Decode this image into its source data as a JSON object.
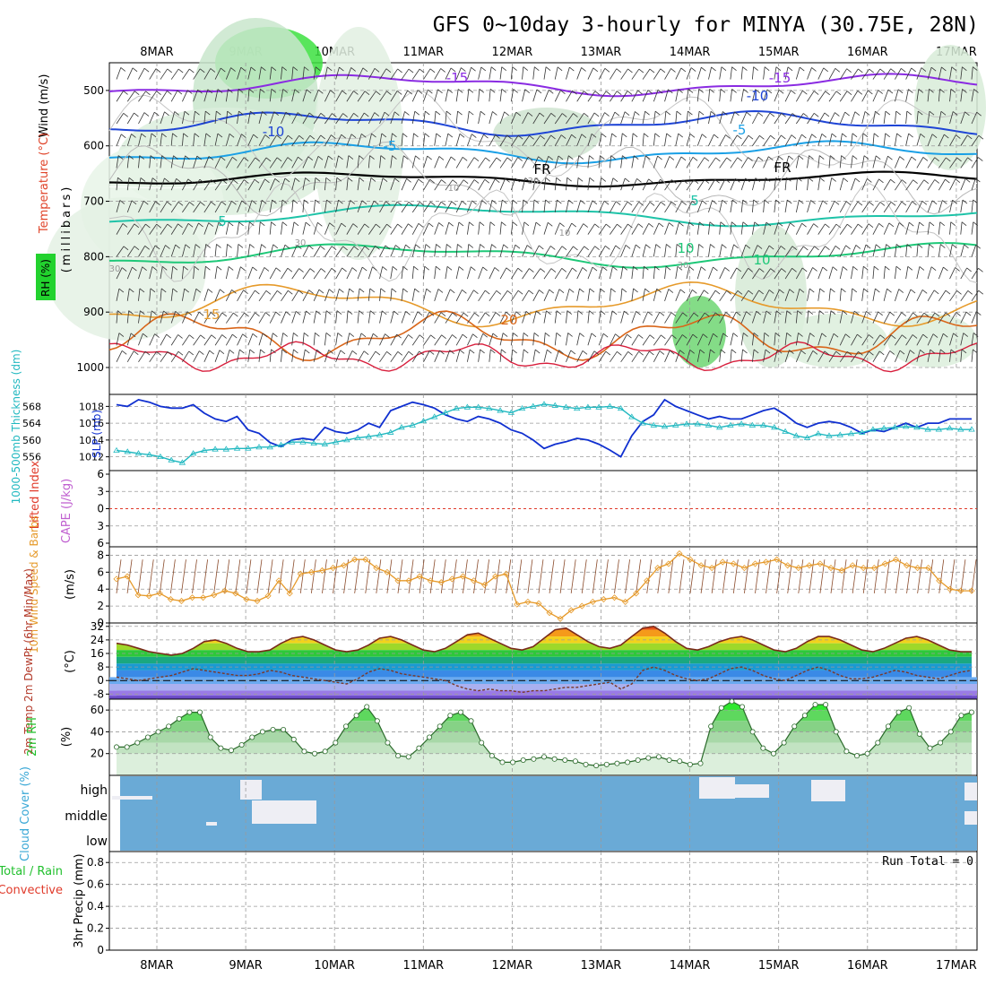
{
  "title": "GFS 0~10day 3-hourly for MINYA (30.75E, 28N)",
  "colors": {
    "purple": "#8a2be2",
    "blue": "#1f45d6",
    "lightblue": "#1aa0e6",
    "teal": "#1ec3a8",
    "green": "#1ec878",
    "orange": "#e69a2a",
    "darkorange": "#d9661a",
    "red": "#d81e3c",
    "grid": "#9a9a9a",
    "wind": "#333333",
    "slp": "#1030d0",
    "thick": "#20b8c0",
    "cloud": "#6aaad6"
  },
  "chart_data": [
    {
      "type": "heatmap",
      "name": "upper-air",
      "dates": [
        "8MAR",
        "9MAR",
        "10MAR",
        "11MAR",
        "12MAR",
        "13MAR",
        "14MAR",
        "15MAR",
        "16MAR",
        "17MAR"
      ],
      "ylabel": "(millibars)",
      "yticks": [
        500,
        600,
        700,
        800,
        900,
        1000
      ],
      "ylim": [
        450,
        1000
      ],
      "side_labels": [
        "Wind (m/s)",
        "Temperature (°C)",
        "RH (%)"
      ],
      "isotherm_labels": [
        "-15",
        "-15",
        "-10",
        "-10",
        "-5",
        "-5",
        "FR",
        "FR",
        "5",
        "5",
        "10",
        "15",
        "20",
        "10",
        "30",
        "30",
        "30",
        "30",
        "10",
        "10"
      ]
    },
    {
      "type": "line",
      "name": "slp-thickness",
      "left_label": "1000-500mb Thickness (dm)",
      "right_label": "SLP (mb)",
      "left_ticks": [
        556,
        560,
        564,
        568
      ],
      "right_ticks": [
        1012,
        1014,
        1016,
        1018
      ],
      "series": [
        {
          "name": "SLP (mb)",
          "values": [
            1018.2,
            1018.0,
            1018.8,
            1018.5,
            1018.0,
            1017.8,
            1017.8,
            1018.2,
            1017.2,
            1016.5,
            1016.2,
            1016.8,
            1015.2,
            1014.8,
            1013.7,
            1013.2,
            1014.0,
            1014.2,
            1014.0,
            1015.5,
            1015.0,
            1014.8,
            1015.2,
            1016.0,
            1015.5,
            1017.5,
            1018.0,
            1018.5,
            1018.2,
            1017.8,
            1017.0,
            1016.5,
            1016.2,
            1016.8,
            1016.5,
            1016.0,
            1015.2,
            1014.8,
            1014.0,
            1013.0,
            1013.5,
            1013.8,
            1014.2,
            1014.0,
            1013.5,
            1012.8,
            1012.0,
            1014.5,
            1016.2,
            1017.0,
            1018.8,
            1018.0,
            1017.5,
            1017.0,
            1016.5,
            1016.8,
            1016.5,
            1016.5,
            1017.0,
            1017.5,
            1017.8,
            1017.0,
            1016.0,
            1015.5,
            1016.0,
            1016.2,
            1016.0,
            1015.5,
            1014.8,
            1015.2,
            1015.0,
            1015.5,
            1016.0,
            1015.5,
            1016.0,
            1016.0,
            1016.5,
            1016.5,
            1016.5
          ]
        },
        {
          "name": "Thickness (dm)",
          "values": [
            557.5,
            557.2,
            556.8,
            556.5,
            556.0,
            555.2,
            554.6,
            556.8,
            557.5,
            557.8,
            557.8,
            558.0,
            558.0,
            558.3,
            558.3,
            558.8,
            559.5,
            559.5,
            559.2,
            559.0,
            559.5,
            560.0,
            560.5,
            560.8,
            561.2,
            561.8,
            563.0,
            563.5,
            564.5,
            565.5,
            566.5,
            567.5,
            567.8,
            567.8,
            567.5,
            567.0,
            566.5,
            567.5,
            568.0,
            568.5,
            568.2,
            567.8,
            567.5,
            567.8,
            567.8,
            568.0,
            567.5,
            565.5,
            564.0,
            563.5,
            563.2,
            563.5,
            563.8,
            563.8,
            563.5,
            563.0,
            563.5,
            563.8,
            563.5,
            563.5,
            563.0,
            562.0,
            561.0,
            560.5,
            561.5,
            561.0,
            561.2,
            561.5,
            561.8,
            562.5,
            562.8,
            563.0,
            563.2,
            563.0,
            562.5,
            562.5,
            562.8,
            562.5,
            562.5
          ]
        }
      ]
    },
    {
      "type": "line",
      "name": "lifted-index-cape",
      "left_label": "Lifted Index",
      "right_label": "CAPE (J/kg)",
      "yticks": [
        -6,
        -3,
        0,
        3,
        6
      ],
      "ylim": [
        -6,
        6
      ]
    },
    {
      "type": "line",
      "name": "wind-speed",
      "left_label": "10m Wind Speed & Barbs",
      "units": "(m/s)",
      "yticks": [
        0,
        2,
        4,
        6,
        8
      ],
      "ylim": [
        0,
        9
      ],
      "series": [
        {
          "name": "10m Wind Speed",
          "values": [
            5.2,
            5.5,
            3.3,
            3.2,
            3.5,
            2.8,
            2.6,
            3.0,
            3.0,
            3.3,
            3.8,
            3.5,
            2.8,
            2.6,
            3.2,
            5.0,
            3.5,
            5.8,
            6.0,
            6.2,
            6.5,
            6.8,
            7.5,
            7.5,
            6.5,
            6.0,
            5.0,
            5.0,
            5.5,
            5.0,
            4.8,
            5.2,
            5.5,
            5.0,
            4.5,
            5.5,
            5.8,
            2.2,
            2.5,
            2.3,
            1.2,
            0.5,
            1.5,
            2.0,
            2.5,
            2.8,
            3.0,
            2.5,
            3.5,
            5.0,
            6.5,
            7.0,
            8.2,
            7.5,
            6.8,
            6.5,
            7.2,
            7.0,
            6.5,
            7.0,
            7.2,
            7.5,
            6.8,
            6.5,
            6.8,
            7.0,
            6.5,
            6.2,
            6.8,
            6.5,
            6.5,
            7.0,
            7.5,
            6.8,
            6.5,
            6.5,
            5.0,
            4.0,
            3.8,
            3.8
          ]
        }
      ]
    },
    {
      "type": "area",
      "name": "temperature",
      "left_label": "2m Temp 2m DewPt (6hr Min/Max)",
      "units": "(°C)",
      "yticks": [
        -8,
        0,
        8,
        16,
        24,
        32
      ],
      "ylim": [
        -11,
        34
      ],
      "series": [
        {
          "name": "2m Temp",
          "values": [
            22,
            21,
            19,
            17,
            16,
            15,
            16,
            19,
            23,
            24,
            22,
            19,
            17,
            17,
            18,
            22,
            25,
            26,
            24,
            21,
            18,
            17,
            18,
            21,
            25,
            26,
            24,
            21,
            18,
            17,
            19,
            23,
            27,
            28,
            25,
            22,
            19,
            18,
            20,
            25,
            30,
            31,
            27,
            23,
            20,
            19,
            21,
            26,
            31,
            32,
            28,
            23,
            19,
            18,
            20,
            23,
            25,
            26,
            24,
            21,
            18,
            17,
            19,
            23,
            26,
            26,
            24,
            21,
            18,
            17,
            19,
            22,
            25,
            26,
            24,
            21,
            18,
            17,
            17
          ]
        },
        {
          "name": "2m DewPt",
          "values": [
            2,
            1,
            0,
            1,
            2,
            3,
            5,
            7,
            6,
            5,
            4,
            3,
            3,
            4,
            6,
            5,
            3,
            2,
            1,
            0,
            -1,
            -2,
            1,
            5,
            7,
            6,
            4,
            3,
            2,
            1,
            0,
            -3,
            -5,
            -6,
            -5,
            -6,
            -6,
            -7,
            -6,
            -6,
            -5,
            -4,
            -4,
            -3,
            -2,
            -1,
            -5,
            -2,
            6,
            8,
            6,
            3,
            1,
            0,
            1,
            4,
            7,
            8,
            6,
            3,
            1,
            0,
            3,
            6,
            8,
            6,
            3,
            1,
            1,
            2,
            4,
            6,
            5,
            3,
            2,
            1,
            3,
            5,
            6
          ]
        }
      ]
    },
    {
      "type": "area",
      "name": "relative-humidity",
      "left_label": "2m RH",
      "units": "(%)",
      "yticks": [
        20,
        40,
        60
      ],
      "ylim": [
        0,
        70
      ],
      "series": [
        {
          "name": "2m RH",
          "values": [
            26,
            26,
            30,
            35,
            40,
            45,
            52,
            58,
            58,
            35,
            25,
            23,
            28,
            35,
            40,
            42,
            42,
            33,
            22,
            20,
            22,
            30,
            45,
            55,
            63,
            50,
            30,
            18,
            17,
            25,
            35,
            45,
            55,
            58,
            50,
            30,
            18,
            12,
            12,
            14,
            15,
            17,
            15,
            14,
            13,
            10,
            9,
            10,
            11,
            12,
            14,
            16,
            17,
            14,
            13,
            10,
            11,
            45,
            62,
            68,
            63,
            40,
            25,
            20,
            30,
            45,
            55,
            65,
            65,
            40,
            22,
            18,
            20,
            30,
            45,
            58,
            62,
            38,
            25,
            30,
            40,
            55,
            58
          ]
        }
      ]
    },
    {
      "type": "bar",
      "name": "cloud-cover",
      "left_label": "Cloud Cover (%)",
      "levels": [
        "high",
        "middle",
        "low"
      ]
    },
    {
      "type": "bar",
      "name": "precipitation",
      "left_label": "3hr Precip (mm)",
      "legend": [
        "Total / Rain",
        "Convective"
      ],
      "annotation": "Run Total = 0",
      "yticks": [
        0,
        0.2,
        0.4,
        0.6,
        0.8
      ],
      "ylim": [
        0,
        0.9
      ]
    }
  ]
}
